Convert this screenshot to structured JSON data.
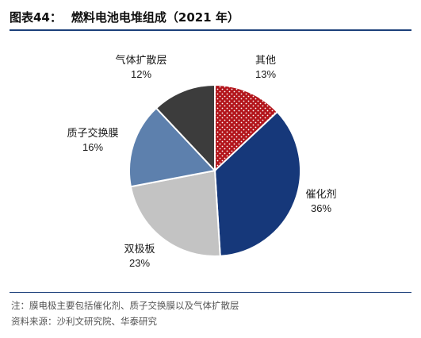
{
  "figure": {
    "label": "图表44：",
    "title": "燃料电池电堆组成（2021 年）"
  },
  "chart_data": {
    "type": "pie",
    "title": "燃料电池电堆组成（2021 年）",
    "slices": [
      {
        "label": "其他",
        "value": 13,
        "value_label": "13%",
        "color": "#b3151b",
        "pattern": "white-dots"
      },
      {
        "label": "催化剂",
        "value": 36,
        "value_label": "36%",
        "color": "#16387a"
      },
      {
        "label": "双极板",
        "value": 23,
        "value_label": "23%",
        "color": "#c3c3c3"
      },
      {
        "label": "质子交换膜",
        "value": 16,
        "value_label": "16%",
        "color": "#5d80ad"
      },
      {
        "label": "气体扩散层",
        "value": 12,
        "value_label": "12%",
        "color": "#3c3c3c"
      }
    ],
    "start_angle_deg": 0,
    "direction": "clockwise",
    "legend": "none",
    "labels": "outside"
  },
  "notes": [
    "注：膜电极主要包括催化剂、质子交换膜以及气体扩散层",
    "资料来源：沙利文研究院、华泰研究"
  ]
}
